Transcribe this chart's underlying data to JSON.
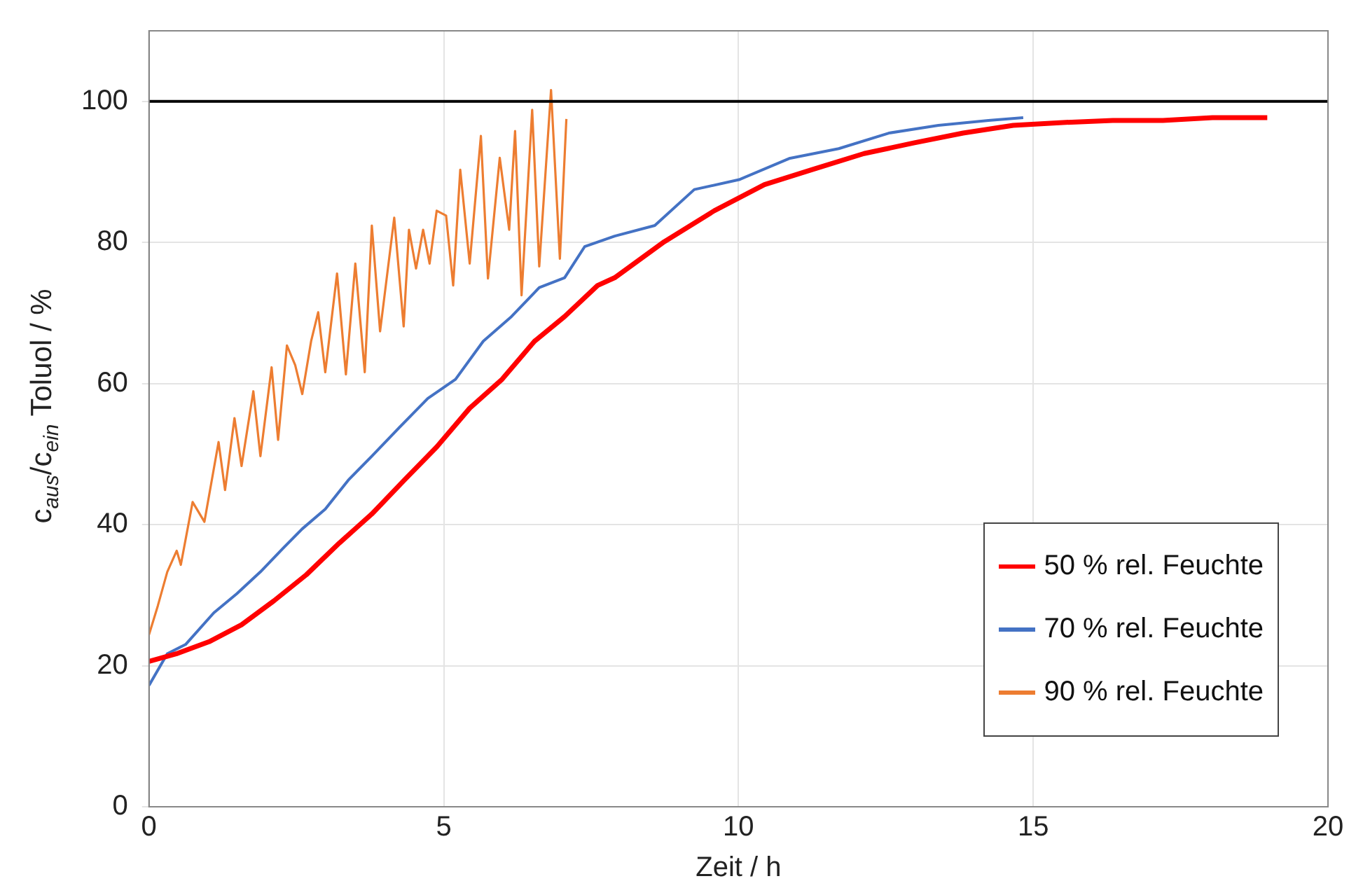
{
  "chart_data": {
    "type": "line",
    "xlabel": "Zeit / h",
    "ylabel": "c$_{aus}$/c$_{ein}$ Toluol / %",
    "xlim": [
      0,
      20
    ],
    "xticks": [
      0,
      5,
      10,
      15,
      20
    ],
    "ylim": [
      0,
      110
    ],
    "yticks": [
      0,
      20,
      40,
      60,
      80,
      100
    ],
    "grid": true,
    "legend": "bottom right",
    "marker": "none",
    "line_style": "solid",
    "ref_lines": [
      {
        "axis": "y",
        "value": 100,
        "color": "#000000"
      }
    ],
    "series": [
      {
        "name": "50 % rel. Feuchte",
        "color": "#ff0000",
        "x": [
          0,
          0.47,
          1.02,
          1.57,
          2.12,
          2.67,
          3.23,
          3.78,
          4.33,
          4.88,
          5.44,
          5.99,
          6.54,
          7.05,
          7.61,
          7.9,
          8.74,
          9.59,
          10.44,
          11.28,
          12.13,
          12.97,
          13.81,
          14.66,
          15.5,
          16.35,
          17.2,
          18.04,
          18.97
        ],
        "values": [
          20.6,
          21.7,
          23.4,
          25.8,
          29.2,
          32.9,
          37.4,
          41.5,
          46.3,
          51,
          56.5,
          60.6,
          66,
          69.5,
          73.9,
          75,
          80.1,
          84.5,
          88.2,
          90.4,
          92.6,
          94.1,
          95.5,
          96.6,
          97,
          97.3,
          97.3,
          97.7,
          97.7
        ]
      },
      {
        "name": "70 % rel. Feuchte",
        "color": "#4472c4",
        "x": [
          0,
          0.31,
          0.62,
          1.1,
          1.49,
          1.89,
          2.28,
          2.6,
          2.99,
          3.38,
          3.78,
          4.25,
          4.73,
          5.2,
          5.67,
          6.15,
          6.62,
          7.05,
          7.39,
          7.9,
          8.58,
          9.25,
          10.01,
          10.86,
          11.7,
          12.55,
          13.39,
          14.24,
          14.83
        ],
        "values": [
          17.2,
          21.7,
          23,
          27.5,
          30.2,
          33.3,
          36.7,
          39.4,
          42.2,
          46.3,
          49.7,
          53.8,
          57.9,
          60.6,
          66,
          69.5,
          73.6,
          75,
          79.4,
          80.9,
          82.4,
          87.5,
          88.9,
          91.9,
          93.3,
          95.5,
          96.6,
          97.3,
          97.7
        ]
      },
      {
        "name": "90 % rel. Feuchte",
        "color": "#ed7d31",
        "x": [
          0,
          0.15,
          0.31,
          0.47,
          0.54,
          0.74,
          0.94,
          1.18,
          1.29,
          1.45,
          1.57,
          1.77,
          1.89,
          2.08,
          2.19,
          2.34,
          2.48,
          2.6,
          2.75,
          2.87,
          2.99,
          3.19,
          3.34,
          3.5,
          3.66,
          3.78,
          3.92,
          4.16,
          4.32,
          4.41,
          4.53,
          4.65,
          4.76,
          4.88,
          5.04,
          5.16,
          5.28,
          5.44,
          5.63,
          5.75,
          5.95,
          6.11,
          6.21,
          6.32,
          6.5,
          6.62,
          6.82,
          6.97,
          7.08
        ],
        "values": [
          24.4,
          28.5,
          33.3,
          36.3,
          34.3,
          43.2,
          40.4,
          51.7,
          44.9,
          55.1,
          48.3,
          58.9,
          49.7,
          62.3,
          52,
          65.4,
          62.6,
          58.5,
          66,
          70.1,
          61.6,
          75.6,
          61.3,
          77,
          61.6,
          82.4,
          67.4,
          83.5,
          68.1,
          81.8,
          76.3,
          81.8,
          77,
          84.5,
          83.8,
          73.9,
          90.3,
          77,
          95.1,
          74.9,
          92,
          81.8,
          95.8,
          72.5,
          98.8,
          76.6,
          101.6,
          77.7,
          97.5
        ]
      }
    ]
  }
}
